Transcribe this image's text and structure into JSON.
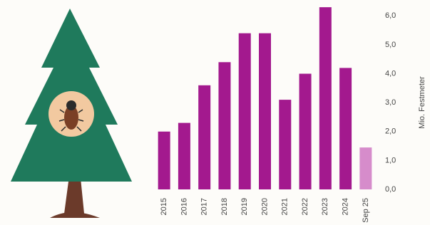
{
  "chart_data": {
    "type": "bar",
    "y_label": "Mio. Festmeter",
    "categories": [
      "2015",
      "2016",
      "2017",
      "2018",
      "2019",
      "2020",
      "2021",
      "2022",
      "2023",
      "2024",
      "Sep 25"
    ],
    "values": [
      2.0,
      2.3,
      3.6,
      4.4,
      5.4,
      5.4,
      3.1,
      4.0,
      6.3,
      4.2,
      1.45
    ],
    "colors": [
      "#a3198e",
      "#a3198e",
      "#a3198e",
      "#a3198e",
      "#a3198e",
      "#a3198e",
      "#a3198e",
      "#a3198e",
      "#a3198e",
      "#a3198e",
      "#d68ccb"
    ],
    "ylim": [
      0,
      6.5
    ],
    "yticks": [
      {
        "value": 0,
        "label": "0,0"
      },
      {
        "value": 1,
        "label": "1,0"
      },
      {
        "value": 2,
        "label": "2,0"
      },
      {
        "value": 3,
        "label": "3,0"
      },
      {
        "value": 4,
        "label": "4,0"
      },
      {
        "value": 5,
        "label": "5,0"
      },
      {
        "value": 6,
        "label": "6,0"
      }
    ],
    "grid": false
  }
}
